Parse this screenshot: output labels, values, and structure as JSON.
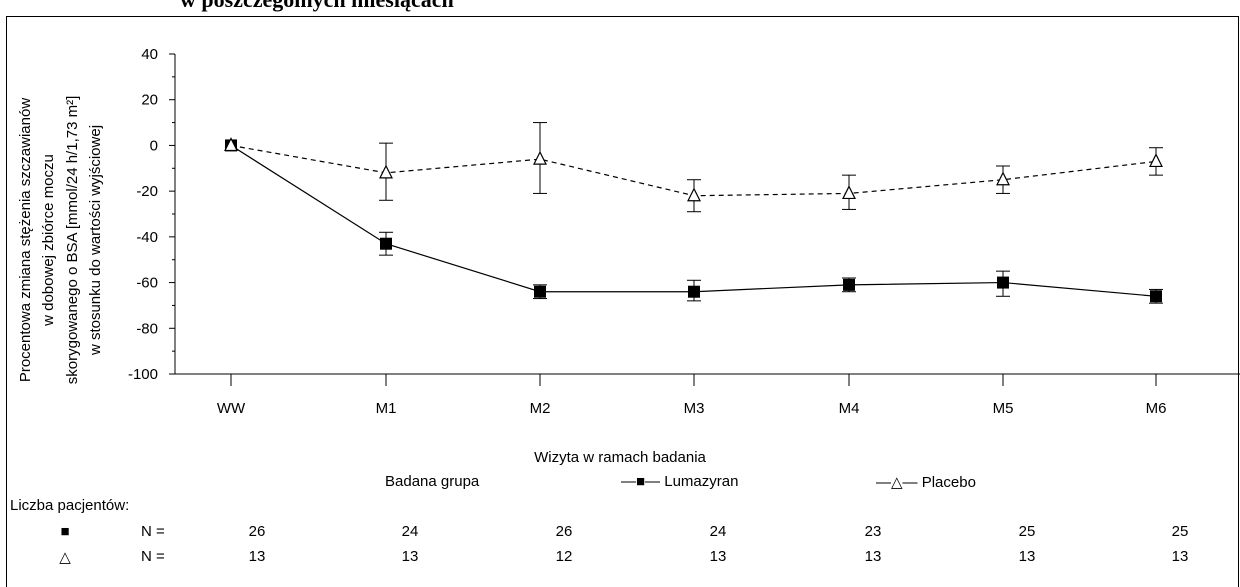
{
  "title": "w poszczególnych miesiącach",
  "chart_data": {
    "type": "line",
    "categories": [
      "WW",
      "M1",
      "M2",
      "M3",
      "M4",
      "M5",
      "M6"
    ],
    "ylabel_lines": [
      "Procentowa zmiana stężenia szczawianów",
      "w dobowej zbiórce moczu",
      "skorygowanego o BSA [mmol/24 h/1,73 m²]",
      "w stosunku do wartości wyjściowej"
    ],
    "xlabel": "Wizyta w ramach badania",
    "ylim": [
      -100,
      40
    ],
    "yticks": [
      40,
      20,
      0,
      -20,
      -40,
      -60,
      -80,
      -100
    ],
    "series": [
      {
        "name": "Lumazyran",
        "marker": "filled-square",
        "line": "solid",
        "values": [
          0,
          -43,
          -64,
          -64,
          -61,
          -60,
          -66
        ],
        "err_low": [
          -1,
          -48,
          -67,
          -68,
          -64,
          -66,
          -69
        ],
        "err_high": [
          1,
          -38,
          -61,
          -59,
          -58,
          -55,
          -63
        ]
      },
      {
        "name": "Placebo",
        "marker": "open-triangle",
        "line": "dashed",
        "values": [
          0,
          -12,
          -6,
          -22,
          -21,
          -15,
          -7
        ],
        "err_low": [
          -1,
          -24,
          -21,
          -29,
          -28,
          -21,
          -13
        ],
        "err_high": [
          1,
          1,
          10,
          -15,
          -13,
          -9,
          -1
        ]
      }
    ]
  },
  "legend": {
    "group_label": "Badana grupa",
    "lumazyran_label": "—■— Lumazyran",
    "placebo_label": "—△— Placebo"
  },
  "patients": {
    "header": "Liczba pacjentów:",
    "rows": [
      {
        "symbol": "■",
        "n_label": "N =",
        "counts": [
          "26",
          "24",
          "26",
          "24",
          "23",
          "25",
          "25"
        ]
      },
      {
        "symbol": "△",
        "n_label": "N =",
        "counts": [
          "13",
          "13",
          "12",
          "13",
          "13",
          "13",
          "13"
        ]
      }
    ]
  }
}
